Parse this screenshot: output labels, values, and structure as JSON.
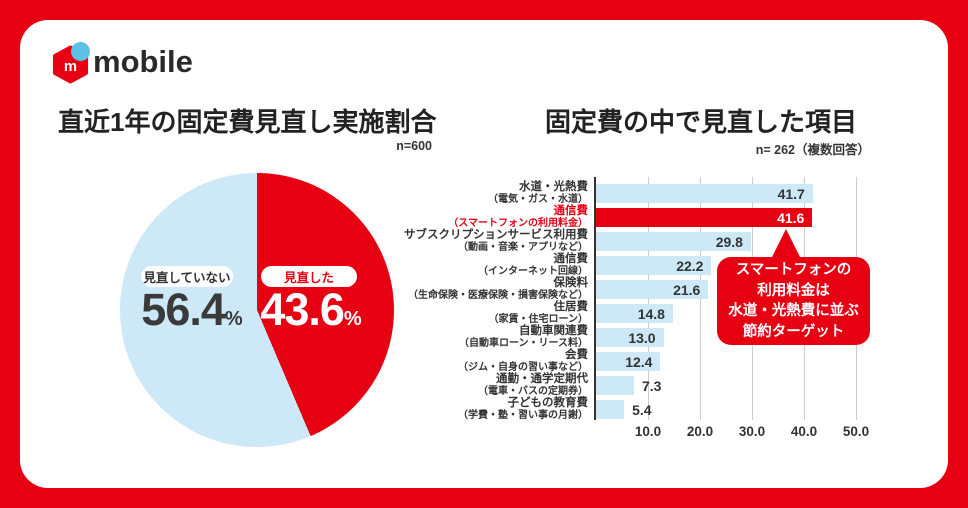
{
  "colors": {
    "brand_red": "#e60012",
    "light_blue": "#cde9f7",
    "dot_blue": "#5ec2e8",
    "dark_text": "#333333",
    "title_text": "#222222",
    "grid_line": "#cccccc",
    "axis_line": "#333333",
    "card_bg": "#ffffff"
  },
  "logo": {
    "m": "m",
    "wordmark": "mobile"
  },
  "chart_data": [
    {
      "type": "pie",
      "title": "直近1年の固定費見直し実施割合",
      "sample_label": "n=600",
      "start": "top",
      "direction": "clockwise",
      "slices": [
        {
          "label": "見直した",
          "value": 43.6,
          "display": "43.6",
          "unit": "%",
          "color": "#e60012",
          "label_color": "#e60012",
          "value_color": "#ffffff"
        },
        {
          "label": "見直していない",
          "value": 56.4,
          "display": "56.4",
          "unit": "%",
          "color": "#cde9f7",
          "label_color": "#333333",
          "value_color": "#3a3a3a"
        }
      ]
    },
    {
      "type": "bar",
      "orientation": "horizontal",
      "title": "固定費の中で見直した項目",
      "sample_label": "n= 262（複数回答）",
      "categories": [
        {
          "main": "水道・光熱費",
          "sub": "（電気・ガス・水道）"
        },
        {
          "main": "通信費",
          "sub": "（スマートフォンの利用料金）"
        },
        {
          "main": "サブスクリプションサービス利用費",
          "sub": "（動画・音楽・アプリなど）"
        },
        {
          "main": "通信費",
          "sub": "（インターネット回線）"
        },
        {
          "main": "保険料",
          "sub": "（生命保険・医療保険・損害保険など）"
        },
        {
          "main": "住居費",
          "sub": "（家賃・住宅ローン）"
        },
        {
          "main": "自動車関連費",
          "sub": "（自動車ローン・リース料）"
        },
        {
          "main": "会費",
          "sub": "（ジム・自身の習い事など）"
        },
        {
          "main": "通勤・通学定期代",
          "sub": "（電車・バスの定期券）"
        },
        {
          "main": "子どもの教育費",
          "sub": "（学費・塾・習い事の月謝）"
        }
      ],
      "values": [
        41.7,
        41.6,
        29.8,
        22.2,
        21.6,
        14.8,
        13.0,
        12.4,
        7.3,
        5.4
      ],
      "value_labels": [
        "41.7",
        "41.6",
        "29.8",
        "22.2",
        "21.6",
        "14.8",
        "13.0",
        "12.4",
        "7.3",
        "5.4"
      ],
      "highlight_index": 1,
      "bar_colors": {
        "default": "#cde9f7",
        "highlight": "#e60012"
      },
      "xlim": [
        0,
        55
      ],
      "xticks": [
        {
          "value": 10,
          "label": "10.0"
        },
        {
          "value": 20,
          "label": "20.0"
        },
        {
          "value": 30,
          "label": "30.0"
        },
        {
          "value": 40,
          "label": "40.0"
        },
        {
          "value": 50,
          "label": "50.0"
        }
      ],
      "grid": true,
      "legend_position": "none",
      "annotation": {
        "lines": [
          "スマートフォンの",
          "利用料金は",
          "水道・光熱費に並ぶ",
          "節約ターゲット"
        ],
        "bg": "#e60012",
        "text_color": "#ffffff",
        "points_to": "通信費（スマートフォンの利用料金）"
      }
    }
  ]
}
